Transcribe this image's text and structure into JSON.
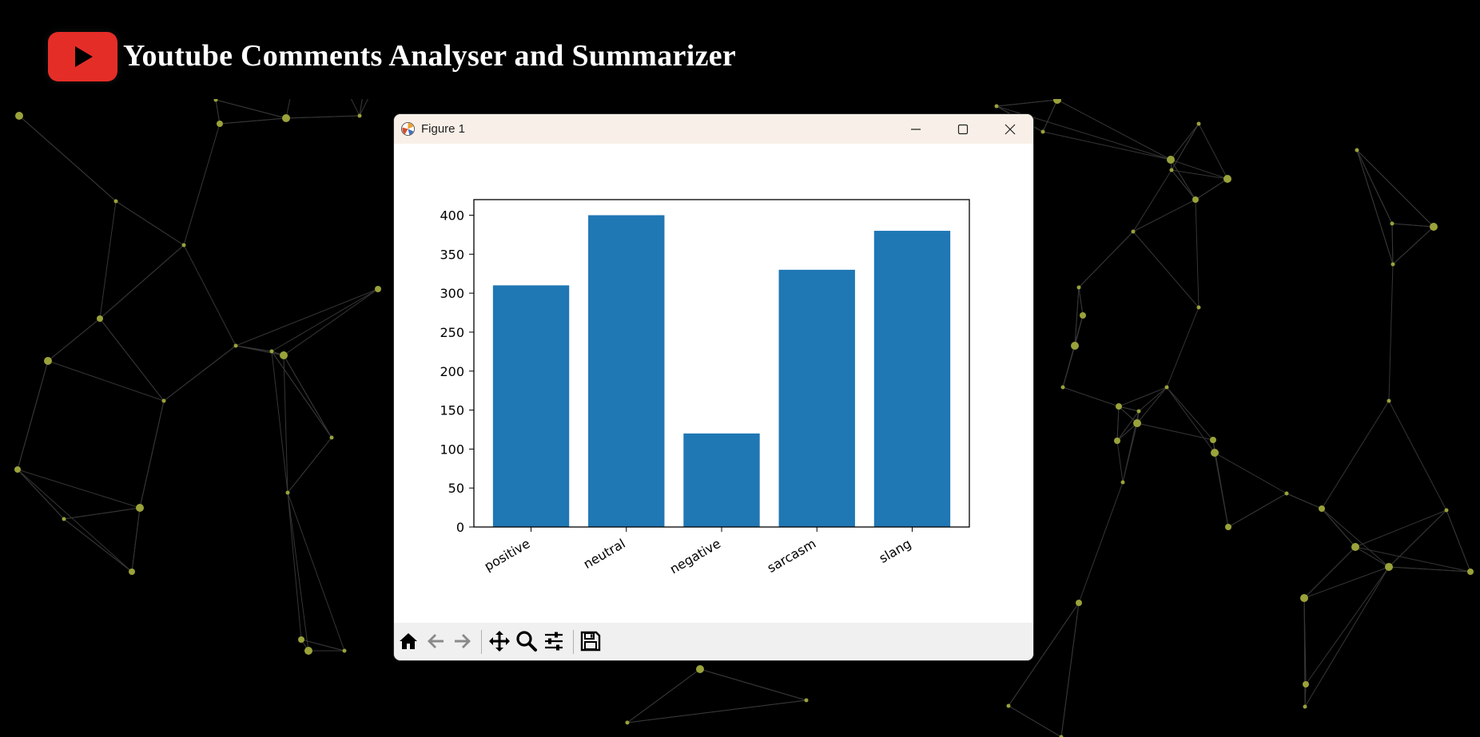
{
  "app": {
    "title": "Youtube Comments Analyser and Summarizer",
    "logo_icon": "youtube-play-icon",
    "accent": "#e52d27",
    "network_node_color": "#9aa23a"
  },
  "window": {
    "title": "Figure 1",
    "icon": "matplotlib-icon",
    "controls": [
      "minimize-icon",
      "maximize-icon",
      "close-icon"
    ]
  },
  "toolbar": {
    "buttons": [
      "home-icon",
      "back-arrow-icon",
      "forward-arrow-icon",
      "pan-icon",
      "zoom-icon",
      "configure-subplots-icon",
      "save-icon"
    ]
  },
  "chart_data": {
    "type": "bar",
    "categories": [
      "positive",
      "neutral",
      "negative",
      "sarcasm",
      "slang"
    ],
    "values": [
      310,
      400,
      120,
      330,
      380
    ],
    "ylim": [
      0,
      420
    ],
    "yticks": [
      0,
      50,
      100,
      150,
      200,
      250,
      300,
      350,
      400
    ],
    "bar_color": "#1f77b4",
    "xtick_rotation": "30 degrees",
    "grid": false,
    "legend": "none",
    "title": "",
    "xlabel": "",
    "ylabel": ""
  }
}
